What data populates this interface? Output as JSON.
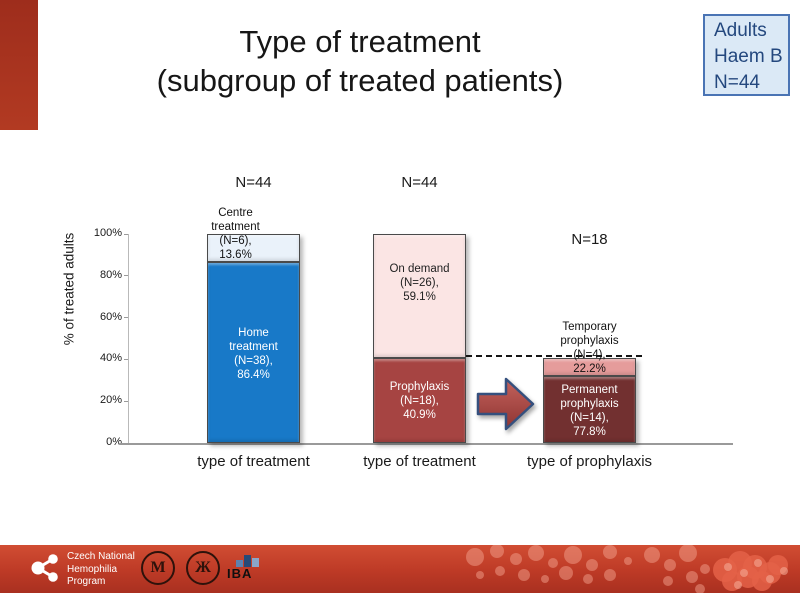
{
  "slide": {
    "title_line1": "Type of treatment",
    "title_line2": "(subgroup of treated patients)",
    "corner_tag": {
      "line1": "Adults",
      "line2": "Haem B",
      "line3": "N=44"
    }
  },
  "chart_data": {
    "type": "bar",
    "stacked": true,
    "title": "Type of treatment (subgroup of treated patients)",
    "ylabel": "% of treated adults",
    "ylim": [
      0,
      100
    ],
    "yticks": [
      "0%",
      "20%",
      "40%",
      "60%",
      "80%",
      "100%"
    ],
    "gridlines": false,
    "categories": [
      "type of treatment",
      "type of treatment",
      "type of prophylaxis"
    ],
    "bars": [
      {
        "x_label": "type of treatment",
        "n_label": "N=44",
        "scale_pct": 100,
        "segments": [
          {
            "name": "Home treatment",
            "n": 38,
            "pct": 86.4,
            "text": [
              "Home",
              "treatment",
              "(N=38),",
              "86.4%"
            ],
            "fill": "#1879c8",
            "text_color": "#ffffff",
            "text_placement": "inside"
          },
          {
            "name": "Centre treatment",
            "n": 6,
            "pct": 13.6,
            "text": [
              "Centre",
              "treatment",
              "(N=6),",
              "13.6%"
            ],
            "fill": "#eaf2fa",
            "text_color": "#111111",
            "text_placement": "above"
          }
        ]
      },
      {
        "x_label": "type of treatment",
        "n_label": "N=44",
        "scale_pct": 100,
        "segments": [
          {
            "name": "Prophylaxis",
            "n": 18,
            "pct": 40.9,
            "text": [
              "Prophylaxis",
              "(N=18),",
              "40.9%"
            ],
            "fill": "#a64442",
            "text_color": "#ffffff",
            "text_placement": "inside"
          },
          {
            "name": "On demand",
            "n": 26,
            "pct": 59.1,
            "text": [
              "On demand",
              "(N=26),",
              "59.1%"
            ],
            "fill": "#fbe5e4",
            "text_color": "#222222",
            "text_placement": "inside"
          }
        ]
      },
      {
        "x_label": "type of prophylaxis",
        "n_label": "N=18",
        "scale_pct": 40.9,
        "segments": [
          {
            "name": "Permanent prophylaxis",
            "n": 14,
            "pct": 77.8,
            "text": [
              "Permanent",
              "prophylaxis",
              "(N=14),",
              "77.8%"
            ],
            "fill": "#723030",
            "text_color": "#ffffff",
            "text_placement": "inside"
          },
          {
            "name": "Temporary prophylaxis",
            "n": 4,
            "pct": 22.2,
            "text": [
              "Temporary",
              "prophylaxis",
              "(N=4),",
              "22.2%"
            ],
            "fill": "#e59c9b",
            "text_color": "#111111",
            "text_placement": "above"
          }
        ]
      }
    ],
    "dashed_reference_line_pct": 40.9,
    "legend_position": "none"
  },
  "footer": {
    "program_line1": "Czech National",
    "program_line2": "Hemophilia",
    "program_line3": "Program",
    "iba_label": "IBA",
    "seal1_glyph": "M",
    "seal2_glyph": "Ж"
  },
  "colors": {
    "accent_red": "#b23a22",
    "footer_red": "#bd3a26",
    "tag_fill": "#dbe9f6",
    "tag_border": "#4a74b4",
    "tag_text": "#24487e",
    "blue_bar": "#1879c8",
    "light_blue_segment": "#eaf2fa",
    "brick_red_segment": "#a64442",
    "light_pink_segment": "#fbe5e4",
    "maroon_segment": "#723030",
    "pink_segment": "#e59c9b",
    "arrow_fill": "#b0504c",
    "arrow_outline": "#35507e"
  }
}
